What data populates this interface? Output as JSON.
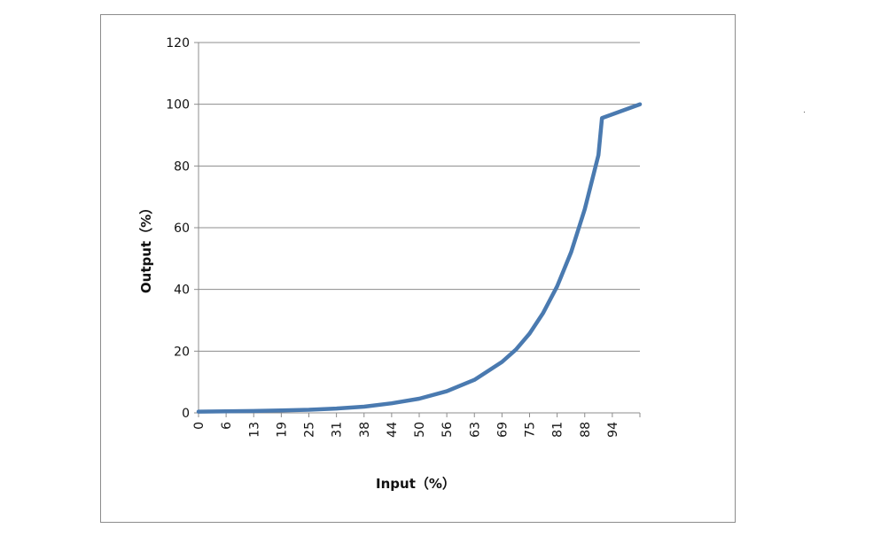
{
  "chart_data": {
    "type": "line",
    "title": "",
    "xlabel": "Input（%）",
    "ylabel": "Output（%）",
    "ylim": [
      0,
      120
    ],
    "yticks": [
      0,
      20,
      40,
      60,
      80,
      100,
      120
    ],
    "categories": [
      "0",
      "6",
      "13",
      "19",
      "25",
      "31",
      "38",
      "44",
      "50",
      "56",
      "63",
      "69",
      "75",
      "81",
      "88",
      "94"
    ],
    "grid": "horizontal",
    "legend": "none",
    "series": [
      {
        "color": "#4a7ab0",
        "x": [
          0,
          6.25,
          12.5,
          18.75,
          25,
          31.25,
          37.5,
          43.75,
          50,
          56.25,
          62.5,
          68.75,
          71.9,
          75,
          78.1,
          81.25,
          84.4,
          87.5,
          90.6,
          91.4,
          100
        ],
        "y": [
          0.4,
          0.5,
          0.6,
          0.8,
          1.0,
          1.4,
          2.0,
          3.1,
          4.6,
          7.0,
          10.7,
          16.5,
          20.5,
          25.7,
          32.4,
          41.0,
          52.0,
          66.0,
          83.5,
          95.5,
          100
        ]
      }
    ]
  }
}
